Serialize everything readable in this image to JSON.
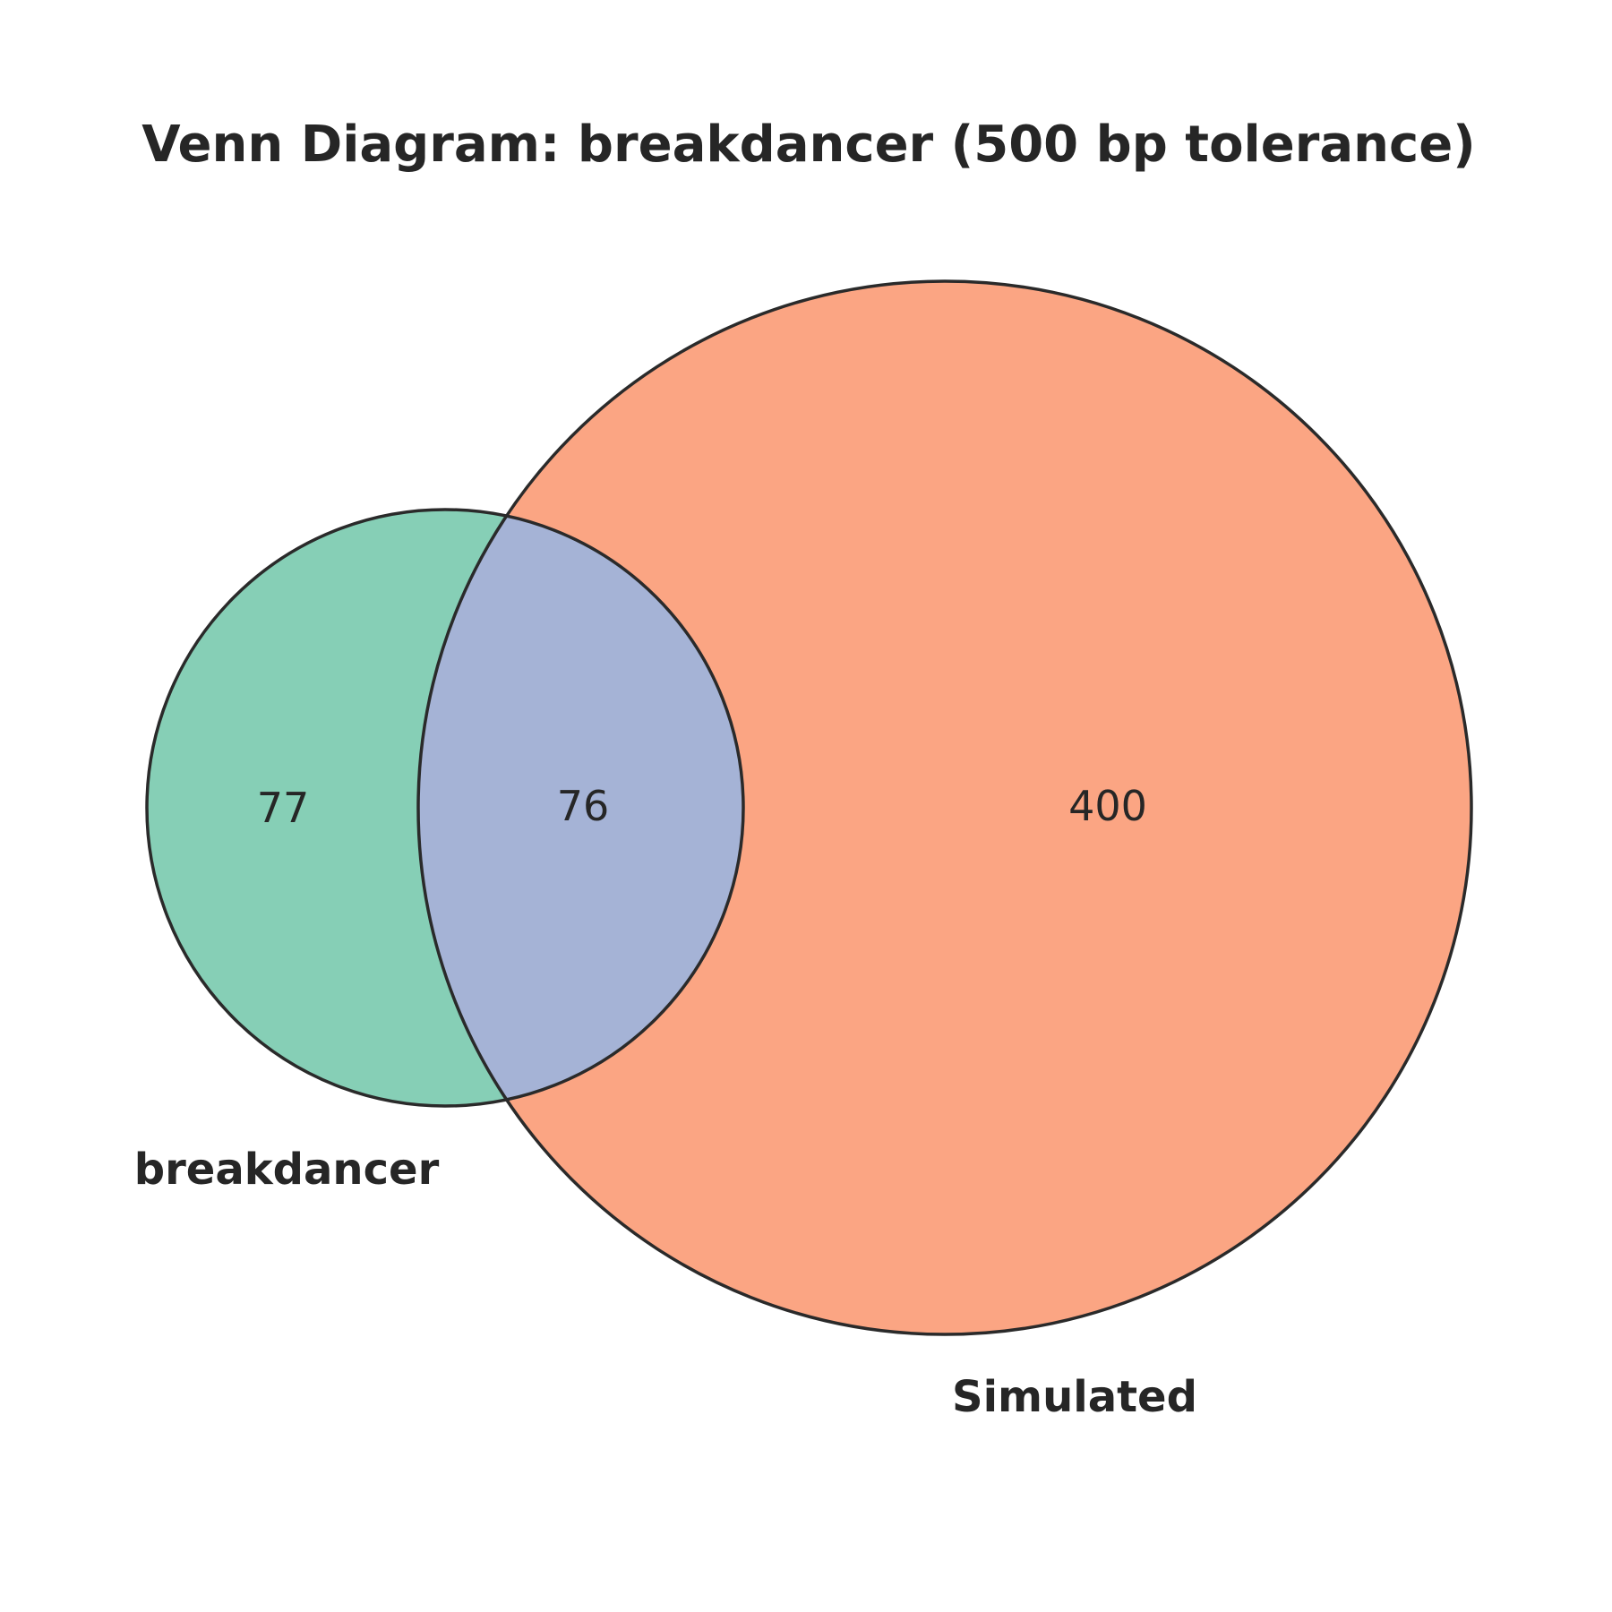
{
  "title": "Venn Diagram: breakdancer (500 bp tolerance)",
  "sets": {
    "a": {
      "name": "breakdancer",
      "color": "#66c2a5"
    },
    "b": {
      "name": "Simulated",
      "color": "#fc8d62"
    }
  },
  "regions": {
    "a_only": "77",
    "both": "76",
    "b_only": "400"
  },
  "colors": {
    "a_only": "#86cfb6",
    "both": "#a5b3d6",
    "b_only": "#fba583",
    "outline": "#2a2a2a",
    "text": "#262626"
  }
}
